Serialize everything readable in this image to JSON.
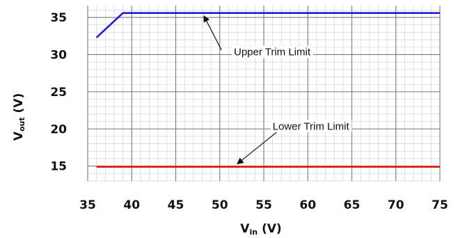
{
  "chart_data": {
    "type": "line",
    "title": "",
    "xlabel": {
      "main": "V",
      "sub": "in",
      "unit": " (V)"
    },
    "ylabel": {
      "main": "V",
      "sub": "out",
      "unit": " (V)"
    },
    "xlim": [
      35,
      75
    ],
    "ylim": [
      13,
      36.6
    ],
    "x_ticks": [
      35,
      40,
      45,
      50,
      55,
      60,
      65,
      70,
      75
    ],
    "y_ticks": [
      15,
      20,
      25,
      30,
      35
    ],
    "grid": true,
    "series": [
      {
        "name": "Upper Trim Limit",
        "color": "#1a1adc",
        "points": [
          [
            36,
            32.3
          ],
          [
            39,
            35.6
          ],
          [
            75,
            35.6
          ]
        ]
      },
      {
        "name": "Lower Trim Limit",
        "color": "#e01818",
        "points": [
          [
            36,
            14.9
          ],
          [
            75,
            14.9
          ]
        ]
      }
    ],
    "annotations": [
      {
        "text": "Upper Trim Limit",
        "label_at": [
          51.6,
          30.0
        ],
        "arrow_from": [
          50.2,
          30.6
        ],
        "arrow_to": [
          48.2,
          35.2
        ]
      },
      {
        "text": "Lower Trim Limit",
        "label_at": [
          56.0,
          20.0
        ],
        "arrow_from": [
          56.5,
          19.6
        ],
        "arrow_to": [
          52.0,
          15.3
        ]
      }
    ]
  }
}
